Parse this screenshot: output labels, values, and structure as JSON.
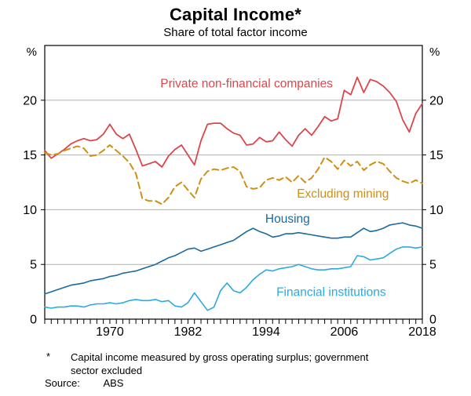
{
  "header": {
    "title": "Capital Income*",
    "subtitle": "Share of total factor income"
  },
  "footnotes": {
    "marker": "*",
    "text": "Capital income measured by gross operating surplus; government sector excluded",
    "source_label": "Source:",
    "source_value": "ABS"
  },
  "chart_data": {
    "type": "line",
    "title": "Capital Income*",
    "subtitle": "Share of total factor income",
    "unit_left": "%",
    "unit_right": "%",
    "x_start": 1960,
    "x_end": 2018,
    "x_ticks": [
      1970,
      1982,
      1994,
      2006,
      2018
    ],
    "ylim": [
      0,
      25
    ],
    "y_ticks": [
      0,
      5,
      10,
      15,
      20
    ],
    "grid_values": [
      5,
      10,
      15,
      20
    ],
    "grid_on": true,
    "legend_position": "inline-labels",
    "colors": {
      "grid": "#b0b0b1",
      "axis": "#000000",
      "text": "#000000"
    },
    "series": [
      {
        "name": "Private non-financial companies",
        "color": "#dc464b",
        "dash": false,
        "stroke": 1.8,
        "label": {
          "year": 1991.0,
          "value": 21.55
        },
        "values": [
          15.4,
          14.7,
          15.1,
          15.5,
          16.0,
          16.3,
          16.5,
          16.3,
          16.4,
          16.9,
          17.8,
          16.9,
          16.5,
          16.9,
          15.5,
          14.0,
          14.2,
          14.4,
          13.9,
          14.9,
          15.5,
          15.9,
          15.0,
          14.1,
          16.3,
          17.8,
          17.9,
          17.9,
          17.4,
          17.0,
          16.8,
          15.9,
          16.0,
          16.6,
          16.2,
          16.3,
          17.1,
          16.4,
          15.8,
          16.8,
          17.4,
          16.8,
          17.6,
          18.5,
          18.1,
          18.3,
          20.9,
          20.5,
          22.1,
          20.7,
          21.9,
          21.7,
          21.3,
          20.7,
          19.9,
          18.2,
          17.1,
          18.8,
          19.7
        ]
      },
      {
        "name": "Excluding mining",
        "color": "#ce9115",
        "dash": true,
        "stroke": 2.0,
        "label": {
          "year": 2005.8,
          "value": 11.5
        },
        "values": [
          15.2,
          15.0,
          15.1,
          15.4,
          15.6,
          15.8,
          15.6,
          14.9,
          15.0,
          15.4,
          15.9,
          15.4,
          14.9,
          14.3,
          13.3,
          11.0,
          10.8,
          10.8,
          10.5,
          11.1,
          12.1,
          12.5,
          11.8,
          11.1,
          12.8,
          13.5,
          13.7,
          13.6,
          13.8,
          13.9,
          13.5,
          12.1,
          11.9,
          12.0,
          12.7,
          12.9,
          12.7,
          13.0,
          12.5,
          13.1,
          12.5,
          12.9,
          13.7,
          14.8,
          14.4,
          13.7,
          14.5,
          14.0,
          14.4,
          13.6,
          14.1,
          14.4,
          14.2,
          13.5,
          12.9,
          12.6,
          12.4,
          12.7,
          12.4
        ]
      },
      {
        "name": "Housing",
        "color": "#1a6a9e",
        "dash": false,
        "stroke": 1.6,
        "label": {
          "year": 1997.3,
          "value": 9.2
        },
        "values": [
          2.3,
          2.5,
          2.7,
          2.9,
          3.1,
          3.2,
          3.3,
          3.5,
          3.6,
          3.7,
          3.9,
          4.0,
          4.2,
          4.3,
          4.4,
          4.6,
          4.8,
          5.0,
          5.3,
          5.6,
          5.8,
          6.1,
          6.4,
          6.5,
          6.2,
          6.4,
          6.6,
          6.8,
          7.0,
          7.2,
          7.6,
          8.0,
          8.3,
          8.0,
          7.8,
          7.5,
          7.6,
          7.8,
          7.8,
          7.9,
          7.8,
          7.7,
          7.6,
          7.5,
          7.4,
          7.4,
          7.5,
          7.5,
          7.9,
          8.3,
          8.0,
          8.1,
          8.3,
          8.6,
          8.7,
          8.8,
          8.6,
          8.5,
          8.3
        ]
      },
      {
        "name": "Financial institutions",
        "color": "#30a9de",
        "dash": false,
        "stroke": 1.6,
        "label": {
          "year": 2004.0,
          "value": 2.5
        },
        "values": [
          1.1,
          1.0,
          1.1,
          1.1,
          1.2,
          1.2,
          1.1,
          1.3,
          1.4,
          1.4,
          1.5,
          1.4,
          1.5,
          1.7,
          1.8,
          1.7,
          1.7,
          1.8,
          1.6,
          1.7,
          1.2,
          1.1,
          1.5,
          2.4,
          1.6,
          0.8,
          1.1,
          2.6,
          3.3,
          2.6,
          2.4,
          2.9,
          3.6,
          4.1,
          4.5,
          4.4,
          4.6,
          4.7,
          4.8,
          5.0,
          4.8,
          4.6,
          4.5,
          4.5,
          4.6,
          4.6,
          4.7,
          4.8,
          5.8,
          5.7,
          5.4,
          5.5,
          5.6,
          6.0,
          6.4,
          6.6,
          6.6,
          6.5,
          6.6
        ]
      }
    ]
  }
}
